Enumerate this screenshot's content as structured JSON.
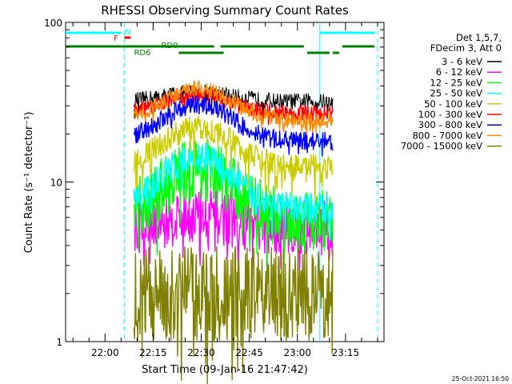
{
  "chart_data": {
    "type": "line",
    "title": "RHESSI Observing Summary Count Rates",
    "xlabel": "Start Time (09-Jan-16 21:47:42)",
    "ylabel": "Count Rate (s⁻¹ detector⁻¹)",
    "y_scale": "log",
    "ylim": [
      1,
      100
    ],
    "xlim": [
      "21:47:42",
      "23:27:00"
    ],
    "x_tick_labels": [
      "22:00",
      "22:15",
      "22:30",
      "22:45",
      "23:00",
      "23:15"
    ],
    "y_tick_labels": [
      "1",
      "10",
      "100"
    ],
    "legend_header": [
      "Det 1,5,7,",
      "FDecim 3, Att 0"
    ],
    "legend_position": "right",
    "grid": false,
    "series": [
      {
        "name": "3 - 6 keV",
        "color": "#000000",
        "level": 32,
        "peak": 1.15,
        "noise": 0.05,
        "low": 0.85
      },
      {
        "name": "6 - 12 keV",
        "color": "#ff00ff",
        "level": 5.2,
        "peak": 1.2,
        "noise": 0.18,
        "low": 0.6
      },
      {
        "name": "12 - 25 keV",
        "color": "#00ff00",
        "level": 5.8,
        "peak": 2.1,
        "noise": 0.2,
        "low": 0.6
      },
      {
        "name": "25 - 50 keV",
        "color": "#00ffff",
        "level": 6.8,
        "peak": 2.1,
        "noise": 0.1,
        "low": 0.8
      },
      {
        "name": "50 - 100 keV",
        "color": "#cccc00",
        "level": 12.5,
        "peak": 1.75,
        "noise": 0.08,
        "low": 0.7
      },
      {
        "name": "100 - 300 keV",
        "color": "#ff0000",
        "level": 27,
        "peak": 1.3,
        "noise": 0.05,
        "low": 0.9
      },
      {
        "name": "300 - 800 keV",
        "color": "#0000ff",
        "level": 18,
        "peak": 1.7,
        "noise": 0.06,
        "low": 0.9
      },
      {
        "name": "800 - 7000 keV",
        "color": "#ff8800",
        "level": 24,
        "peak": 1.6,
        "noise": 0.05,
        "low": 0.9
      },
      {
        "name": "7000 - 15000 keV",
        "color": "#808000",
        "level": 2.0,
        "peak": 1.0,
        "noise": 0.3,
        "low": 0.5
      }
    ],
    "data_window": {
      "start": "22:09",
      "end": "23:11"
    },
    "peak_time": "22:29",
    "flags": {
      "rows": [
        {
          "label": "N",
          "color": "#00ffff",
          "segments": [
            [
              "21:47:42",
              "22:05"
            ],
            [
              "23:07",
              "23:24"
            ]
          ]
        },
        {
          "label": "F",
          "color": "#ff0000",
          "segments": [
            [
              "22:06",
              "22:08"
            ]
          ]
        },
        {
          "label": "RD0",
          "color": "#008000",
          "segments": [
            [
              "21:47:42",
              "22:34"
            ],
            [
              "22:36",
              "23:02"
            ],
            [
              "23:14",
              "23:24"
            ]
          ]
        },
        {
          "label": "RD6",
          "color": "#008000",
          "segments": [
            [
              "22:23",
              "22:37"
            ],
            [
              "23:03",
              "23:10"
            ],
            [
              "23:11",
              "23:13"
            ]
          ]
        }
      ]
    },
    "vlines": [
      {
        "time": "22:06",
        "color": "#00ffff",
        "style": "dashed"
      },
      {
        "time": "23:07",
        "color": "#00ffff",
        "style": "solid"
      },
      {
        "time": "23:25",
        "color": "#00ffff",
        "style": "dashed"
      }
    ]
  },
  "footer": {
    "timestamp": "25-Oct-2021 16:50"
  }
}
